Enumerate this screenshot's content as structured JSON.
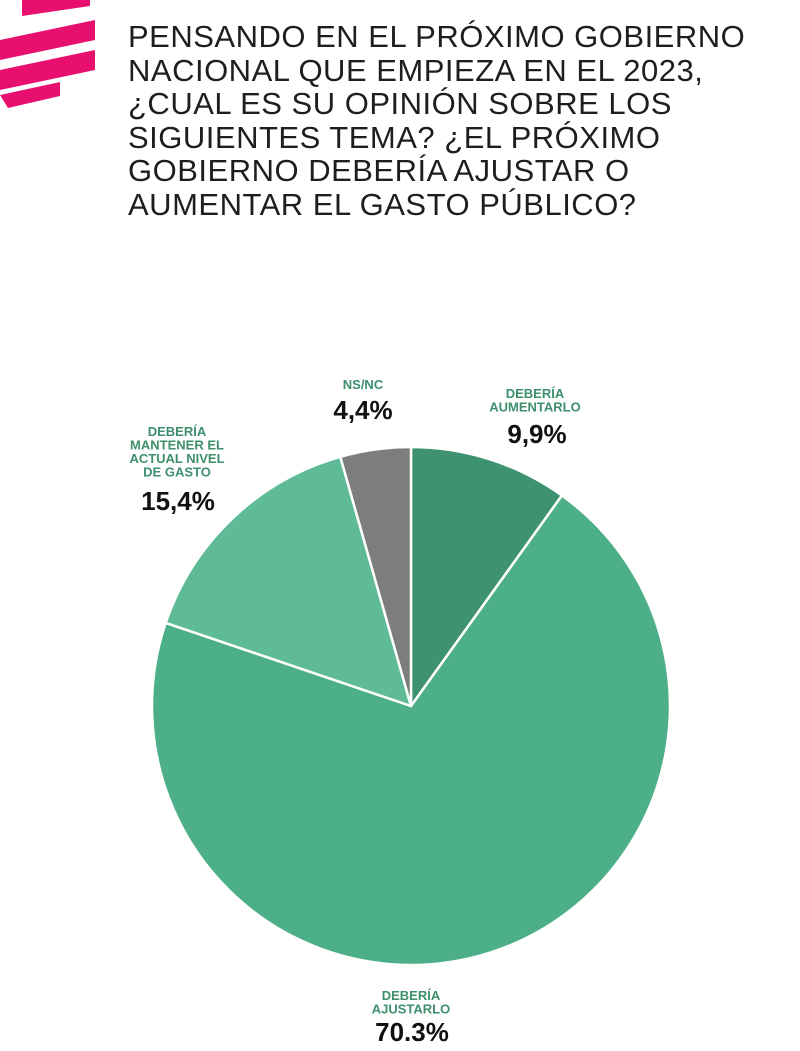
{
  "title": "PENSANDO EN EL PRÓXIMO GOBIERNO NACIONAL QUE EMPIEZA EN EL 2023, ¿CUAL ES SU OPINIÓN SOBRE LOS SIGUIENTES TEMA? ¿EL PRÓXIMO GOBIERNO DEBERÍA AJUSTAR O AUMENTAR EL GASTO PÚBLICO?",
  "logo_icon": "magenta-stripes-logo-icon",
  "colors": {
    "accent": "#E8106F",
    "label_text": "#3e8f6c"
  },
  "chart_data": {
    "type": "pie",
    "title": "PENSANDO EN EL PRÓXIMO GOBIERNO NACIONAL QUE EMPIEZA EN EL 2023, ¿CUAL ES SU OPINIÓN SOBRE LOS SIGUIENTES TEMA? ¿EL PRÓXIMO GOBIERNO DEBERÍA AJUSTAR O AUMENTAR EL GASTO PÚBLICO?",
    "start": "12 o'clock, clockwise",
    "slices": [
      {
        "key": "aumentar",
        "label": [
          "DEBERÍA",
          "AUMENTARLO"
        ],
        "value": 9.9,
        "value_label": "9,9%",
        "color": "#3f9270"
      },
      {
        "key": "ajustar",
        "label": [
          "DEBERÍA",
          "AJUSTARLO"
        ],
        "value": 70.3,
        "value_label": "70.3%",
        "color": "#4daf88"
      },
      {
        "key": "mantener",
        "label": [
          "DEBERÍA",
          "MANTENER EL",
          "ACTUAL NIVEL",
          "DE GASTO"
        ],
        "value": 15.4,
        "value_label": "15,4%",
        "color": "#5fbb96"
      },
      {
        "key": "nsnc",
        "label": [
          "NS/NC"
        ],
        "value": 4.4,
        "value_label": "4,4%",
        "color": "#7d7d7d"
      }
    ]
  }
}
